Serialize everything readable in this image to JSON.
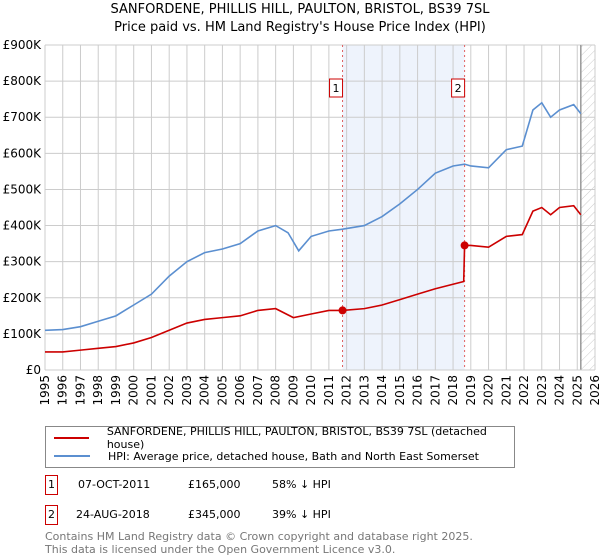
{
  "chart_data": {
    "type": "line",
    "title": "SANFORDENE, PHILLIS HILL, PAULTON, BRISTOL, BS39 7SL",
    "subtitle": "Price paid vs. HM Land Registry's House Price Index (HPI)",
    "xlim": [
      1995,
      2026
    ],
    "ylim": [
      0,
      900000
    ],
    "x_ticks": [
      "1995",
      "1996",
      "1997",
      "1998",
      "1999",
      "2000",
      "2001",
      "2002",
      "2003",
      "2004",
      "2005",
      "2006",
      "2007",
      "2008",
      "2009",
      "2010",
      "2011",
      "2012",
      "2013",
      "2014",
      "2015",
      "2016",
      "2017",
      "2018",
      "2019",
      "2020",
      "2021",
      "2022",
      "2023",
      "2024",
      "2025",
      "2026"
    ],
    "y_ticks": [
      {
        "v": 0,
        "l": "£0"
      },
      {
        "v": 100000,
        "l": "£100K"
      },
      {
        "v": 200000,
        "l": "£200K"
      },
      {
        "v": 300000,
        "l": "£300K"
      },
      {
        "v": 400000,
        "l": "£400K"
      },
      {
        "v": 500000,
        "l": "£500K"
      },
      {
        "v": 600000,
        "l": "£600K"
      },
      {
        "v": 700000,
        "l": "£700K"
      },
      {
        "v": 800000,
        "l": "£800K"
      },
      {
        "v": 900000,
        "l": "£900K"
      }
    ],
    "grid": true,
    "series": [
      {
        "name": "SANFORDENE, PHILLIS HILL, PAULTON, BRISTOL, BS39 7SL (detached house)",
        "color": "#cc0000",
        "x": [
          1995,
          1996,
          1997,
          1998,
          1999,
          2000,
          2001,
          2002,
          2003,
          2004,
          2005,
          2006,
          2007,
          2008,
          2009,
          2010,
          2011,
          2011.77,
          2013,
          2014,
          2015,
          2016,
          2017,
          2018.6,
          2018.65,
          2019,
          2020,
          2021,
          2021.9,
          2022.5,
          2023,
          2023.5,
          2024,
          2024.8,
          2025.2
        ],
        "y": [
          50000,
          50000,
          55000,
          60000,
          65000,
          75000,
          90000,
          110000,
          130000,
          140000,
          145000,
          150000,
          165000,
          170000,
          145000,
          155000,
          165000,
          165000,
          170000,
          180000,
          195000,
          210000,
          225000,
          245000,
          345000,
          345000,
          340000,
          370000,
          375000,
          440000,
          450000,
          430000,
          450000,
          455000,
          430000
        ]
      },
      {
        "name": "HPI: Average price, detached house, Bath and North East Somerset",
        "color": "#5b8fd0",
        "x": [
          1995,
          1996,
          1997,
          1998,
          1999,
          2000,
          2001,
          2002,
          2003,
          2004,
          2005,
          2006,
          2007,
          2008,
          2008.7,
          2009.3,
          2010,
          2011,
          2011.77,
          2013,
          2014,
          2015,
          2016,
          2017,
          2018,
          2018.65,
          2019,
          2020,
          2021,
          2021.9,
          2022.5,
          2023,
          2023.5,
          2024,
          2024.8,
          2025.2
        ],
        "y": [
          110000,
          112000,
          120000,
          135000,
          150000,
          180000,
          210000,
          260000,
          300000,
          325000,
          335000,
          350000,
          385000,
          400000,
          380000,
          330000,
          370000,
          385000,
          390000,
          400000,
          425000,
          460000,
          500000,
          545000,
          565000,
          570000,
          565000,
          560000,
          610000,
          620000,
          720000,
          740000,
          700000,
          720000,
          735000,
          710000
        ]
      }
    ],
    "annotations": [
      {
        "label": "1",
        "x": 2011.77,
        "y": 165000
      },
      {
        "label": "2",
        "x": 2018.65,
        "y": 345000
      }
    ],
    "shaded_range": [
      2011.77,
      2018.65
    ],
    "hatched_from": 2025.2
  },
  "sales": [
    {
      "num": "1",
      "date": "07-OCT-2011",
      "price": "£165,000",
      "hpi": "58% ↓ HPI"
    },
    {
      "num": "2",
      "date": "24-AUG-2018",
      "price": "£345,000",
      "hpi": "39% ↓ HPI"
    }
  ],
  "footer": {
    "line1": "Contains HM Land Registry data © Crown copyright and database right 2025.",
    "line2": "This data is licensed under the Open Government Licence v3.0."
  }
}
